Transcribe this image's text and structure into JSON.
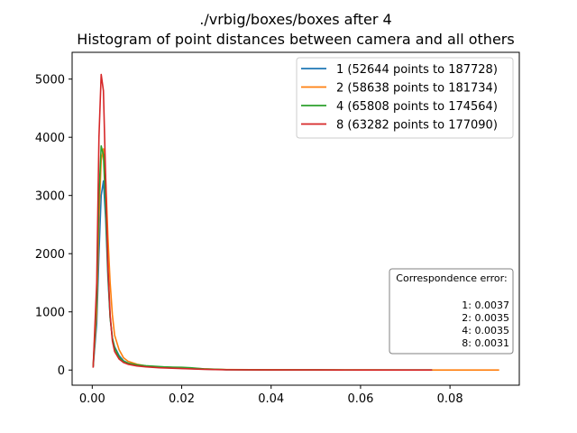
{
  "chart_data": {
    "type": "line",
    "title": "./vrbig/boxes/boxes after 4",
    "subtitle": "Histogram of point distances between camera and all others",
    "xlabel": "",
    "ylabel": "",
    "xlim": [
      -0.0045,
      0.0955
    ],
    "ylim": [
      -260,
      5460
    ],
    "x_ticks": [
      0.0,
      0.02,
      0.04,
      0.06,
      0.08
    ],
    "x_tick_labels": [
      "0.00",
      "0.02",
      "0.04",
      "0.06",
      "0.08"
    ],
    "y_ticks": [
      0,
      1000,
      2000,
      3000,
      4000,
      5000
    ],
    "y_tick_labels": [
      "0",
      "1000",
      "2000",
      "3000",
      "4000",
      "5000"
    ],
    "grid": false,
    "legend_position": "top-right",
    "series": [
      {
        "name": "1 (52644 points to 187728)",
        "color": "#1f77b4",
        "x": [
          0.0002,
          0.001,
          0.0015,
          0.002,
          0.0025,
          0.003,
          0.0035,
          0.004,
          0.0045,
          0.005,
          0.006,
          0.007,
          0.008,
          0.01,
          0.012,
          0.015,
          0.02,
          0.025,
          0.03,
          0.04,
          0.05,
          0.06,
          0.07,
          0.076
        ],
        "y": [
          50,
          800,
          2000,
          3000,
          3250,
          2600,
          1600,
          900,
          550,
          400,
          250,
          160,
          120,
          80,
          60,
          45,
          30,
          15,
          6,
          3,
          2,
          1,
          1,
          0
        ]
      },
      {
        "name": "2 (58638 points to 181734)",
        "color": "#ff7f0e",
        "x": [
          0.0002,
          0.001,
          0.0015,
          0.002,
          0.0025,
          0.003,
          0.0035,
          0.004,
          0.0045,
          0.005,
          0.006,
          0.007,
          0.008,
          0.01,
          0.012,
          0.015,
          0.02,
          0.025,
          0.03,
          0.04,
          0.05,
          0.06,
          0.07,
          0.08,
          0.091
        ],
        "y": [
          60,
          1000,
          2600,
          3600,
          3800,
          3300,
          2300,
          1500,
          950,
          600,
          350,
          210,
          150,
          100,
          70,
          55,
          40,
          20,
          8,
          4,
          2,
          2,
          1,
          1,
          0
        ]
      },
      {
        "name": "4 (65808 points to 174564)",
        "color": "#2ca02c",
        "x": [
          0.0002,
          0.001,
          0.0015,
          0.002,
          0.0025,
          0.003,
          0.0035,
          0.004,
          0.0045,
          0.005,
          0.006,
          0.007,
          0.008,
          0.01,
          0.012,
          0.014,
          0.016,
          0.018,
          0.02,
          0.022,
          0.025,
          0.03,
          0.04,
          0.05,
          0.06,
          0.07,
          0.076
        ],
        "y": [
          60,
          1200,
          3000,
          3850,
          3700,
          2800,
          1700,
          900,
          550,
          380,
          220,
          150,
          120,
          90,
          75,
          65,
          55,
          50,
          48,
          40,
          20,
          6,
          3,
          2,
          1,
          1,
          0
        ]
      },
      {
        "name": "8 (63282 points to 177090)",
        "color": "#d62728",
        "x": [
          0.0002,
          0.001,
          0.0015,
          0.002,
          0.0025,
          0.003,
          0.0035,
          0.004,
          0.0045,
          0.005,
          0.006,
          0.007,
          0.008,
          0.01,
          0.012,
          0.015,
          0.02,
          0.025,
          0.03,
          0.04,
          0.05,
          0.06,
          0.07,
          0.076
        ],
        "y": [
          40,
          1500,
          4000,
          5080,
          4800,
          3300,
          1800,
          950,
          500,
          320,
          190,
          130,
          100,
          70,
          55,
          40,
          25,
          12,
          5,
          3,
          2,
          1,
          1,
          0
        ]
      }
    ],
    "annotation": {
      "title": "Correspondence error:",
      "lines": [
        "1: 0.0037",
        "2: 0.0035",
        "4: 0.0035",
        "8: 0.0031"
      ],
      "position": "lower-right"
    }
  }
}
